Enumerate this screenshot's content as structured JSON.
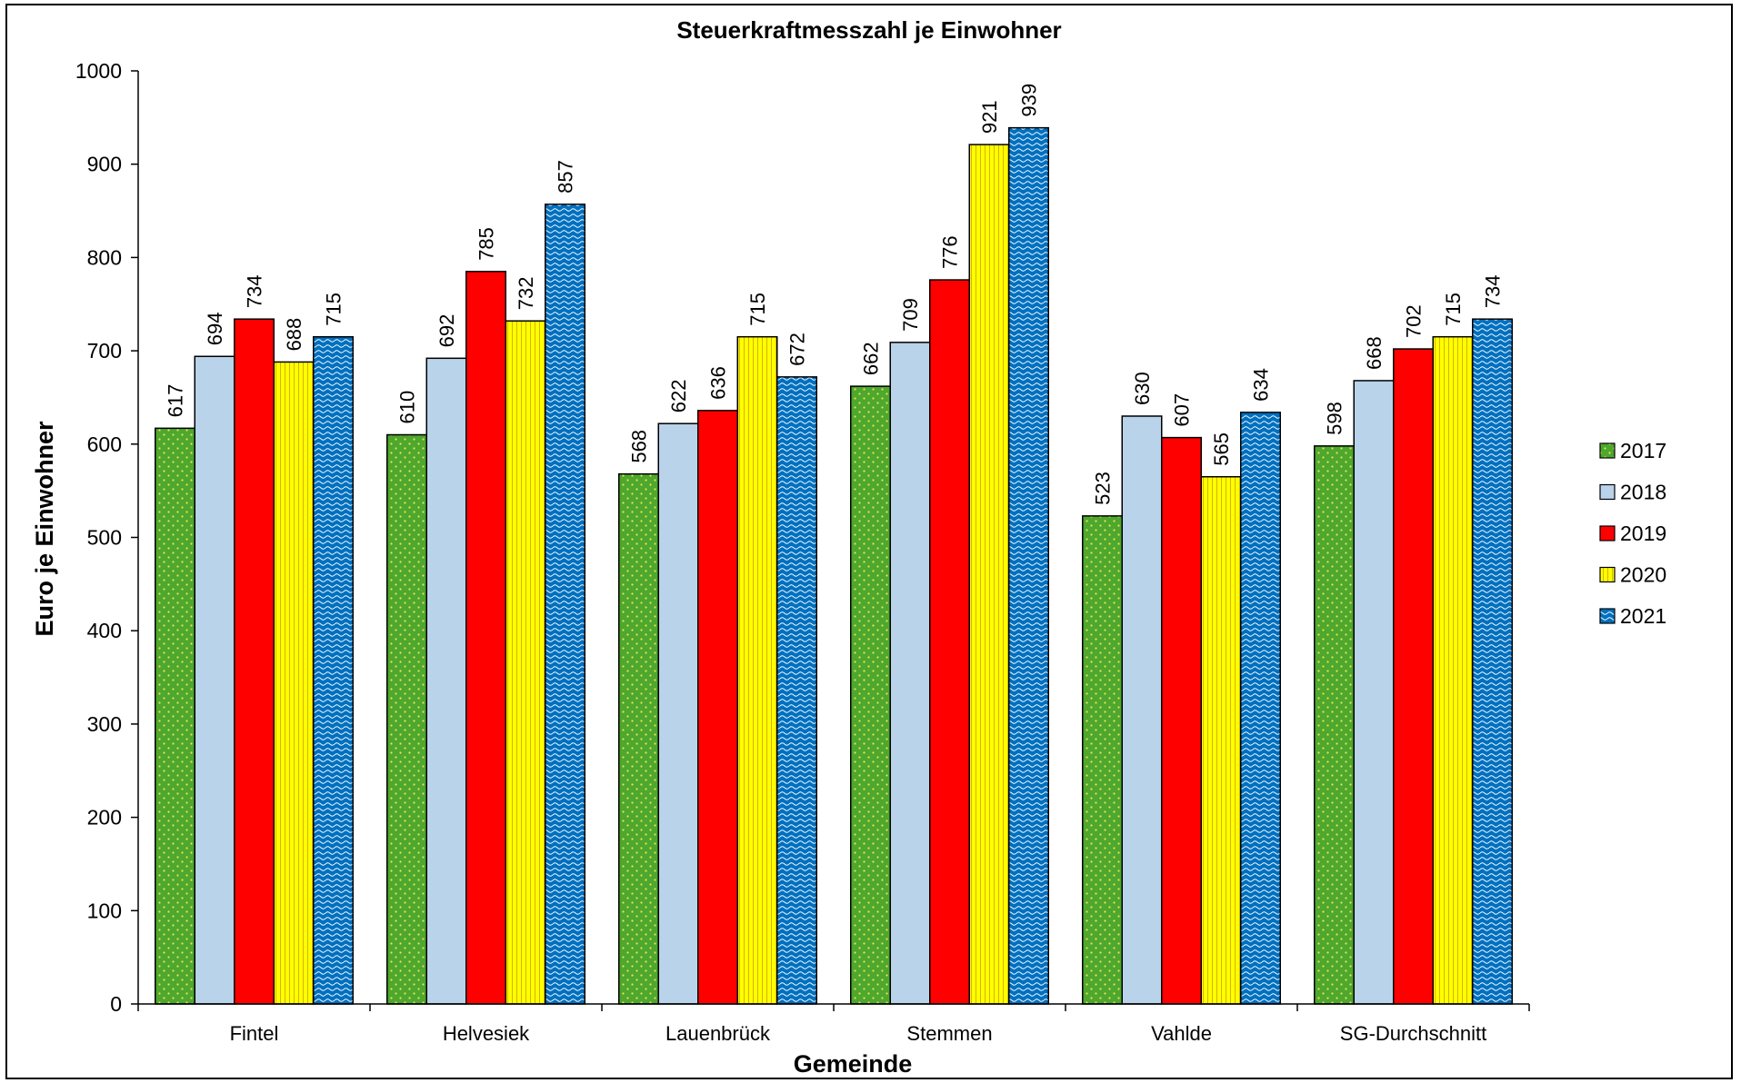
{
  "chart_data": {
    "type": "bar",
    "title": "Steuerkraftmesszahl je Einwohner",
    "xlabel": "Gemeinde",
    "ylabel": "Euro je Einwohner",
    "ylim": [
      0,
      1000
    ],
    "yticks": [
      0,
      100,
      200,
      300,
      400,
      500,
      600,
      700,
      800,
      900,
      1000
    ],
    "grid": false,
    "legend_position": "right",
    "categories": [
      "Fintel",
      "Helvesiek",
      "Lauenbrück",
      "Stemmen",
      "Vahlde",
      "SG-Durchschnitt"
    ],
    "series": [
      {
        "name": "2017",
        "color": "#4ea72e",
        "pattern": "dots",
        "values": [
          617,
          610,
          568,
          662,
          523,
          598
        ]
      },
      {
        "name": "2018",
        "color": "#b8d3ea",
        "pattern": "solid",
        "values": [
          694,
          692,
          622,
          709,
          630,
          668
        ]
      },
      {
        "name": "2019",
        "color": "#ff0000",
        "pattern": "solid",
        "values": [
          734,
          785,
          636,
          776,
          607,
          702
        ]
      },
      {
        "name": "2020",
        "color": "#ffff00",
        "pattern": "vertical-stripes",
        "values": [
          688,
          732,
          715,
          921,
          565,
          715
        ]
      },
      {
        "name": "2021",
        "color": "#0070c0",
        "pattern": "waves",
        "values": [
          715,
          857,
          672,
          939,
          634,
          734
        ]
      }
    ]
  }
}
